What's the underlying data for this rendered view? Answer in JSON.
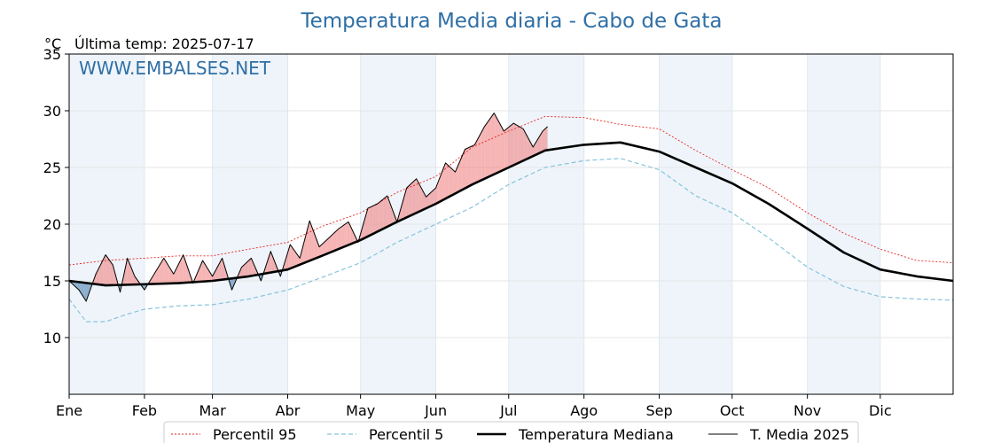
{
  "chart_data": {
    "type": "line",
    "title": "Temperatura Media diaria - Cabo de Gata",
    "ylabel": "°C",
    "subtitle": "Última temp: 2025-07-17",
    "watermark": "WWW.EMBALSES.NET",
    "ylim": [
      5,
      35
    ],
    "yticks": [
      10,
      15,
      20,
      25,
      30,
      35
    ],
    "months": [
      "Ene",
      "Feb",
      "Mar",
      "Abr",
      "May",
      "Jun",
      "Jul",
      "Ago",
      "Sep",
      "Oct",
      "Nov",
      "Dic"
    ],
    "month_start_days": [
      1,
      32,
      60,
      91,
      121,
      152,
      182,
      213,
      244,
      274,
      305,
      335
    ],
    "days_in_year": 365,
    "grid": true,
    "legend_position": "bottom",
    "colors": {
      "p95": "#e8231f",
      "p5": "#87c3dc",
      "median": "#000000",
      "current": "#000000",
      "above": "#f08080",
      "below": "#4a7fb0",
      "month_band": "#eef4fa"
    },
    "series": [
      {
        "key": "p95",
        "name": "Percentil 95",
        "x": [
          1,
          16,
          32,
          46,
          60,
          75,
          91,
          105,
          121,
          136,
          152,
          167,
          182,
          197,
          213,
          228,
          244,
          259,
          274,
          289,
          305,
          320,
          335,
          350,
          365
        ],
        "values": [
          16.4,
          16.8,
          17.0,
          17.2,
          17.2,
          17.8,
          18.4,
          19.8,
          21.0,
          22.8,
          24.2,
          26.8,
          28.2,
          29.5,
          29.4,
          28.8,
          28.4,
          26.5,
          24.8,
          23.2,
          21.0,
          19.2,
          17.8,
          16.8,
          16.6
        ]
      },
      {
        "key": "p5",
        "name": "Percentil 5",
        "x": [
          1,
          8,
          16,
          24,
          32,
          46,
          60,
          75,
          91,
          105,
          121,
          136,
          152,
          167,
          182,
          197,
          213,
          228,
          244,
          259,
          274,
          289,
          305,
          320,
          335,
          350,
          365
        ],
        "values": [
          13.4,
          11.4,
          11.4,
          12.0,
          12.5,
          12.8,
          12.9,
          13.4,
          14.2,
          15.3,
          16.6,
          18.4,
          20.0,
          21.5,
          23.5,
          25.0,
          25.6,
          25.8,
          24.8,
          22.5,
          21.0,
          18.8,
          16.2,
          14.5,
          13.6,
          13.4,
          13.3
        ]
      },
      {
        "key": "median",
        "name": "Temperatura Mediana",
        "x": [
          1,
          16,
          32,
          46,
          60,
          75,
          91,
          105,
          121,
          136,
          152,
          167,
          182,
          197,
          213,
          228,
          244,
          259,
          274,
          289,
          305,
          320,
          335,
          350,
          365
        ],
        "values": [
          15.0,
          14.6,
          14.7,
          14.8,
          15.0,
          15.4,
          16.0,
          17.2,
          18.6,
          20.2,
          21.8,
          23.5,
          25.0,
          26.5,
          27.0,
          27.2,
          26.4,
          25.0,
          23.6,
          21.8,
          19.6,
          17.5,
          16.0,
          15.4,
          15.0
        ]
      },
      {
        "key": "current",
        "name": "T. Media 2025",
        "x": [
          1,
          5,
          8,
          12,
          16,
          19,
          22,
          25,
          28,
          32,
          36,
          40,
          44,
          48,
          52,
          56,
          60,
          64,
          68,
          72,
          76,
          80,
          84,
          88,
          92,
          96,
          100,
          104,
          108,
          112,
          116,
          120,
          124,
          128,
          132,
          136,
          140,
          144,
          148,
          152,
          156,
          160,
          164,
          168,
          172,
          176,
          180,
          184,
          188,
          192,
          196,
          198
        ],
        "values": [
          15.0,
          14.2,
          13.2,
          15.6,
          17.3,
          16.4,
          14.0,
          17.0,
          15.4,
          14.2,
          15.6,
          17.0,
          15.6,
          17.3,
          14.8,
          16.8,
          15.4,
          17.0,
          14.2,
          16.2,
          17.0,
          15.0,
          17.6,
          15.4,
          18.2,
          17.0,
          20.3,
          18.0,
          18.8,
          19.6,
          20.2,
          18.4,
          21.4,
          21.8,
          22.5,
          20.2,
          23.2,
          24.0,
          22.4,
          23.2,
          25.4,
          24.6,
          26.6,
          27.0,
          28.6,
          29.8,
          28.2,
          28.9,
          28.4,
          26.8,
          28.2,
          28.6
        ]
      }
    ]
  }
}
